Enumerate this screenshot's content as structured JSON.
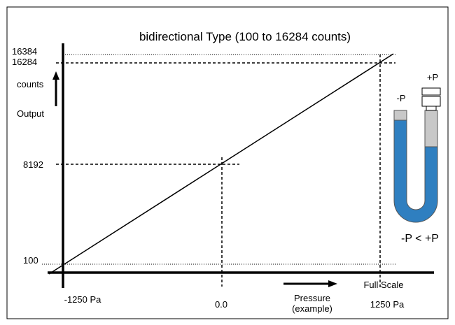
{
  "title": "bidirectional Type (100 to 16284 counts)",
  "y_axis": {
    "labels": [
      "16384",
      "16284",
      "8192",
      "100"
    ],
    "unit": "counts",
    "name": "Output"
  },
  "x_axis": {
    "labels": [
      "-1250 Pa",
      "0.0",
      "1250 Pa"
    ],
    "full_scale": "Full Scale",
    "name": "Pressure",
    "note": "(example)"
  },
  "gauge": {
    "minus": "-P",
    "plus": "+P",
    "relation": "-P < +P"
  }
}
